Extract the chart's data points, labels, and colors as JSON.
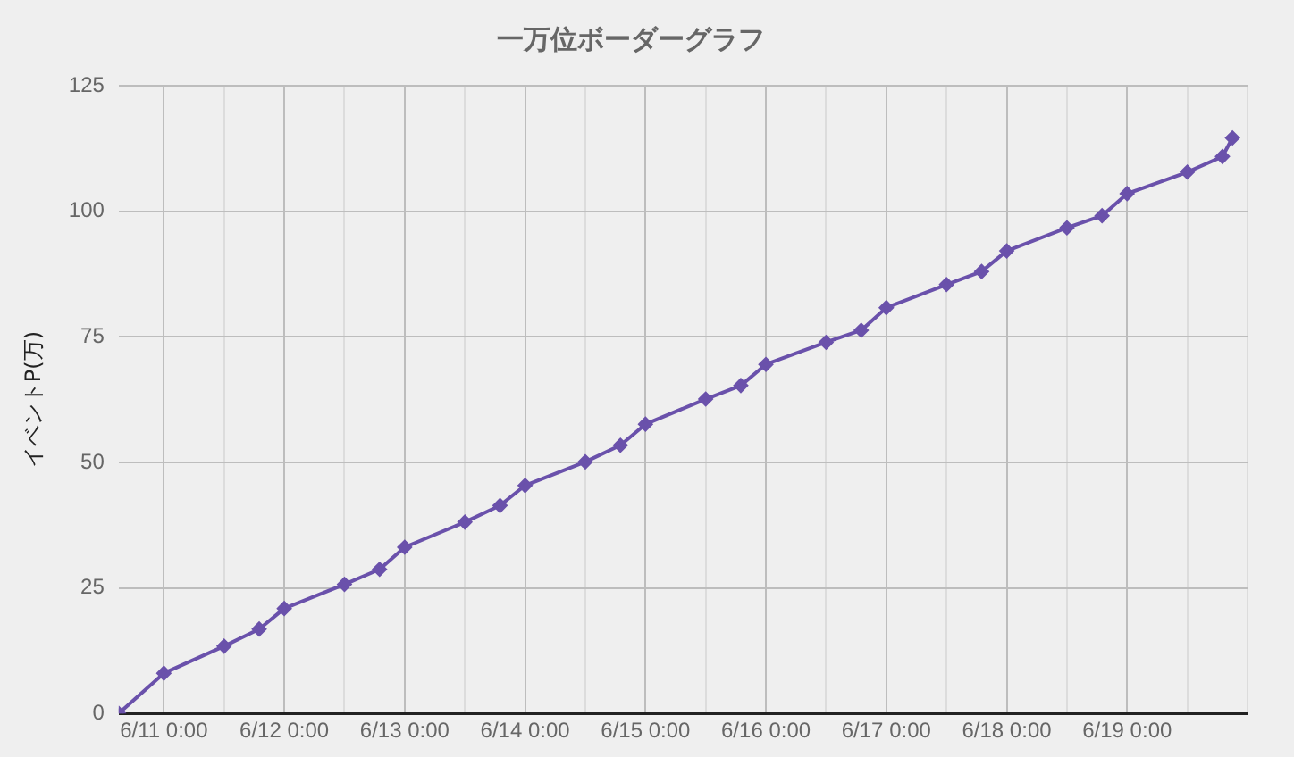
{
  "chart_data": {
    "type": "line",
    "title": "一万位ボーダーグラフ",
    "ylabel": "イベントP(万)",
    "x": [
      "--06-10T15:00",
      "--06-11T00:00",
      "--06-11T12:00",
      "--06-11T19:00",
      "--06-12T00:00",
      "--06-12T12:00",
      "--06-12T19:00",
      "--06-13T00:00",
      "--06-13T12:00",
      "--06-13T19:00",
      "--06-14T00:00",
      "--06-14T12:00",
      "--06-14T19:00",
      "--06-15T00:00",
      "--06-15T12:00",
      "--06-15T19:00",
      "--06-16T00:00",
      "--06-16T12:00",
      "--06-16T19:00",
      "--06-17T00:00",
      "--06-17T12:00",
      "--06-17T19:00",
      "--06-18T00:00",
      "--06-18T12:00",
      "--06-18T19:00",
      "--06-19T00:00",
      "--06-19T12:00",
      "--06-19T19:00",
      "--06-19T21:00"
    ],
    "series": [
      {
        "color": "#6a51ab",
        "values": [
          0,
          8.0,
          13.4,
          16.8,
          20.9,
          25.7,
          28.7,
          33.1,
          38.1,
          41.4,
          45.4,
          50.1,
          53.4,
          57.6,
          62.6,
          65.3,
          69.5,
          73.9,
          76.3,
          80.8,
          85.4,
          88.0,
          92.1,
          96.7,
          99.1,
          103.5,
          107.8,
          110.9,
          114.6
        ]
      }
    ],
    "xlim": [
      "--06-10T15:00",
      "--06-20T00:00"
    ],
    "xticks": [
      {
        "value": "--06-11T00:00",
        "label": "6/11 0:00"
      },
      {
        "value": "--06-11T12:00",
        "label": null
      },
      {
        "value": "--06-12T00:00",
        "label": "6/12 0:00"
      },
      {
        "value": "--06-12T12:00",
        "label": null
      },
      {
        "value": "--06-13T00:00",
        "label": "6/13 0:00"
      },
      {
        "value": "--06-13T12:00",
        "label": null
      },
      {
        "value": "--06-14T00:00",
        "label": "6/14 0:00"
      },
      {
        "value": "--06-14T12:00",
        "label": null
      },
      {
        "value": "--06-15T00:00",
        "label": "6/15 0:00"
      },
      {
        "value": "--06-15T12:00",
        "label": null
      },
      {
        "value": "--06-16T00:00",
        "label": "6/16 0:00"
      },
      {
        "value": "--06-16T12:00",
        "label": null
      },
      {
        "value": "--06-17T00:00",
        "label": "6/17 0:00"
      },
      {
        "value": "--06-17T12:00",
        "label": null
      },
      {
        "value": "--06-18T00:00",
        "label": "6/18 0:00"
      },
      {
        "value": "--06-18T12:00",
        "label": null
      },
      {
        "value": "--06-19T00:00",
        "label": "6/19 0:00"
      },
      {
        "value": "--06-19T12:00",
        "label": null
      },
      {
        "value": "--06-20T00:00",
        "label": null
      }
    ],
    "ylim": [
      0,
      125
    ],
    "yticks": [
      0,
      25,
      50,
      75,
      100,
      125
    ],
    "grid": true,
    "legend": false,
    "marker": "diamond",
    "line_style": "solid"
  }
}
